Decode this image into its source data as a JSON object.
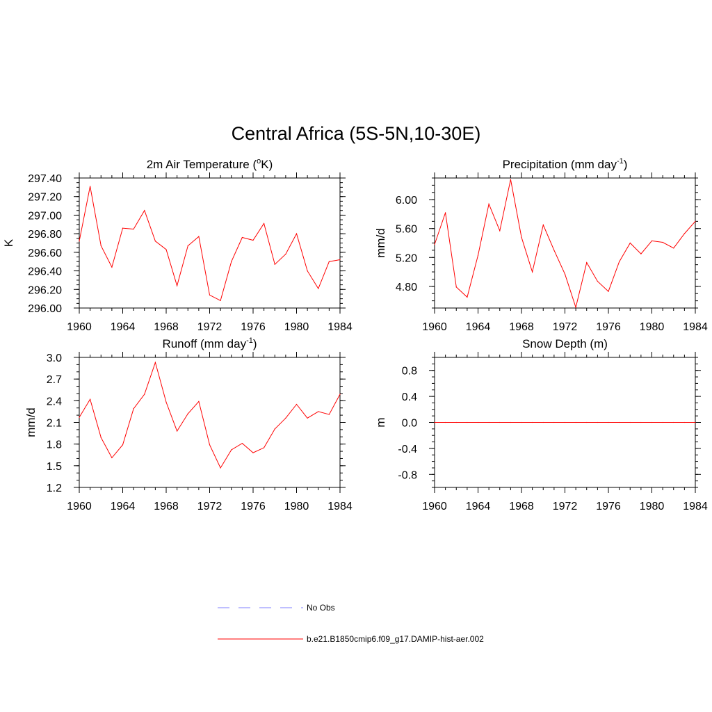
{
  "title": "Central Africa (5S-5N,10-30E)",
  "colors": {
    "model": "#ff0000",
    "obs": "#9999ff",
    "axis": "#000000"
  },
  "legend": {
    "obs_label": "No Obs",
    "model_label": "b.e21.B1850cmip6.f09_g17.DAMIP-hist-aer.002"
  },
  "chart_data": [
    {
      "type": "line",
      "title": "2m Air Temperature (°K)",
      "title_parts": {
        "pre": "2m Air Temperature (",
        "sup": "o",
        "post": "K)"
      },
      "xlabel": "",
      "ylabel": "K",
      "xlim": [
        1960,
        1984
      ],
      "ylim": [
        296.0,
        297.4
      ],
      "xticks": [
        1960,
        1964,
        1968,
        1972,
        1976,
        1980,
        1984
      ],
      "xtick_labels": [
        "1960",
        "1964",
        "1968",
        "1972",
        "1976",
        "1980",
        "1984"
      ],
      "yticks": [
        296.0,
        296.2,
        296.4,
        296.6,
        296.8,
        297.0,
        297.2,
        297.4
      ],
      "ytick_labels": [
        "296.00",
        "296.20",
        "296.40",
        "296.60",
        "296.80",
        "297.00",
        "297.20",
        "297.40"
      ],
      "yminor_step": 0.05,
      "x": [
        1960,
        1961,
        1962,
        1963,
        1964,
        1965,
        1966,
        1967,
        1968,
        1969,
        1970,
        1971,
        1972,
        1973,
        1974,
        1975,
        1976,
        1977,
        1978,
        1979,
        1980,
        1981,
        1982,
        1983,
        1984
      ],
      "series": [
        {
          "name": "b.e21.B1850cmip6.f09_g17.DAMIP-hist-aer.002",
          "values": [
            296.72,
            297.31,
            296.67,
            296.44,
            296.86,
            296.85,
            297.05,
            296.72,
            296.63,
            296.24,
            296.67,
            296.77,
            296.14,
            296.08,
            296.5,
            296.76,
            296.73,
            296.91,
            296.47,
            296.58,
            296.8,
            296.4,
            296.21,
            296.5,
            296.52
          ]
        }
      ]
    },
    {
      "type": "line",
      "title": "Precipitation (mm day-1)",
      "title_parts": {
        "pre": "Precipitation (mm day",
        "sup": "-1",
        "post": ")"
      },
      "xlabel": "",
      "ylabel": "mm/d",
      "xlim": [
        1960,
        1984
      ],
      "ylim": [
        4.5,
        6.3
      ],
      "xticks": [
        1960,
        1964,
        1968,
        1972,
        1976,
        1980,
        1984
      ],
      "xtick_labels": [
        "1960",
        "1964",
        "1968",
        "1972",
        "1976",
        "1980",
        "1984"
      ],
      "yticks": [
        4.8,
        5.2,
        5.6,
        6.0
      ],
      "ytick_labels": [
        "4.80",
        "5.20",
        "5.60",
        "6.00"
      ],
      "yminor_step": 0.1,
      "x": [
        1960,
        1961,
        1962,
        1963,
        1964,
        1965,
        1966,
        1967,
        1968,
        1969,
        1970,
        1971,
        1972,
        1973,
        1974,
        1975,
        1976,
        1977,
        1978,
        1979,
        1980,
        1981,
        1982,
        1983,
        1984
      ],
      "series": [
        {
          "name": "b.e21.B1850cmip6.f09_g17.DAMIP-hist-aer.002",
          "values": [
            5.38,
            5.82,
            4.79,
            4.65,
            5.23,
            5.94,
            5.57,
            6.28,
            5.48,
            5.0,
            5.65,
            5.3,
            4.97,
            4.51,
            5.13,
            4.87,
            4.73,
            5.14,
            5.4,
            5.25,
            5.43,
            5.41,
            5.33,
            5.53,
            5.7
          ]
        }
      ]
    },
    {
      "type": "line",
      "title": "Runoff (mm day-1)",
      "title_parts": {
        "pre": "Runoff (mm day",
        "sup": "-1",
        "post": ")"
      },
      "xlabel": "",
      "ylabel": "mm/d",
      "xlim": [
        1960,
        1984
      ],
      "ylim": [
        1.2,
        3.0
      ],
      "xticks": [
        1960,
        1964,
        1968,
        1972,
        1976,
        1980,
        1984
      ],
      "xtick_labels": [
        "1960",
        "1964",
        "1968",
        "1972",
        "1976",
        "1980",
        "1984"
      ],
      "yticks": [
        1.2,
        1.5,
        1.8,
        2.1,
        2.4,
        2.7,
        3.0
      ],
      "ytick_labels": [
        "1.2",
        "1.5",
        "1.8",
        "2.1",
        "2.4",
        "2.7",
        "3.0"
      ],
      "yminor_step": 0.1,
      "x": [
        1960,
        1961,
        1962,
        1963,
        1964,
        1965,
        1966,
        1967,
        1968,
        1969,
        1970,
        1971,
        1972,
        1973,
        1974,
        1975,
        1976,
        1977,
        1978,
        1979,
        1980,
        1981,
        1982,
        1983,
        1984
      ],
      "series": [
        {
          "name": "b.e21.B1850cmip6.f09_g17.DAMIP-hist-aer.002",
          "values": [
            2.17,
            2.42,
            1.89,
            1.61,
            1.79,
            2.29,
            2.49,
            2.93,
            2.38,
            1.98,
            2.22,
            2.39,
            1.79,
            1.47,
            1.72,
            1.81,
            1.68,
            1.75,
            2.01,
            2.16,
            2.35,
            2.16,
            2.25,
            2.21,
            2.49
          ]
        }
      ]
    },
    {
      "type": "line",
      "title": "Snow Depth (m)",
      "title_parts": {
        "pre": "Snow Depth (m)",
        "sup": "",
        "post": ""
      },
      "xlabel": "",
      "ylabel": "m",
      "xlim": [
        1960,
        1984
      ],
      "ylim": [
        -1.0,
        1.0
      ],
      "xticks": [
        1960,
        1964,
        1968,
        1972,
        1976,
        1980,
        1984
      ],
      "xtick_labels": [
        "1960",
        "1964",
        "1968",
        "1972",
        "1976",
        "1980",
        "1984"
      ],
      "yticks": [
        -0.8,
        -0.4,
        0.0,
        0.4,
        0.8
      ],
      "ytick_labels": [
        "-0.8",
        "-0.4",
        "0.0",
        "0.4",
        "0.8"
      ],
      "yminor_step": 0.1,
      "x": [
        1960,
        1961,
        1962,
        1963,
        1964,
        1965,
        1966,
        1967,
        1968,
        1969,
        1970,
        1971,
        1972,
        1973,
        1974,
        1975,
        1976,
        1977,
        1978,
        1979,
        1980,
        1981,
        1982,
        1983,
        1984
      ],
      "series": [
        {
          "name": "b.e21.B1850cmip6.f09_g17.DAMIP-hist-aer.002",
          "values": [
            0,
            0,
            0,
            0,
            0,
            0,
            0,
            0,
            0,
            0,
            0,
            0,
            0,
            0,
            0,
            0,
            0,
            0,
            0,
            0,
            0,
            0,
            0,
            0,
            0
          ]
        }
      ]
    }
  ]
}
